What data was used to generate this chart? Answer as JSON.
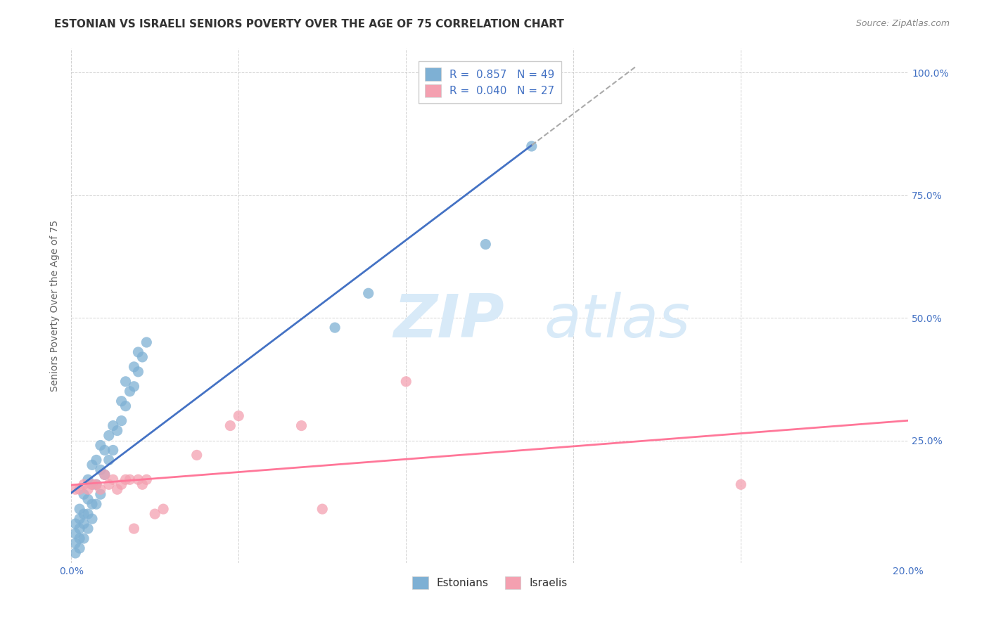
{
  "title": "ESTONIAN VS ISRAELI SENIORS POVERTY OVER THE AGE OF 75 CORRELATION CHART",
  "source": "Source: ZipAtlas.com",
  "ylabel": "Seniors Poverty Over the Age of 75",
  "xlim": [
    0.0,
    0.2
  ],
  "ylim": [
    0.0,
    1.05
  ],
  "x_ticks": [
    0.0,
    0.04,
    0.08,
    0.12,
    0.16,
    0.2
  ],
  "x_tick_labels": [
    "0.0%",
    "",
    "",
    "",
    "",
    "20.0%"
  ],
  "y_ticks": [
    0.0,
    0.25,
    0.5,
    0.75,
    1.0
  ],
  "y_tick_labels_right": [
    "",
    "25.0%",
    "50.0%",
    "75.0%",
    "100.0%"
  ],
  "estonian_color": "#7EB0D4",
  "israeli_color": "#F4A0B0",
  "estonian_line_color": "#4472C4",
  "israeli_line_color": "#FF7799",
  "background_color": "#FFFFFF",
  "grid_color": "#CCCCCC",
  "watermark_zip": "ZIP",
  "watermark_atlas": "atlas",
  "watermark_color": "#D8EAF8",
  "tick_color": "#4472C4",
  "legend_R_color": "#4472C4",
  "estonians_x": [
    0.001,
    0.001,
    0.001,
    0.001,
    0.002,
    0.002,
    0.002,
    0.002,
    0.002,
    0.003,
    0.003,
    0.003,
    0.003,
    0.004,
    0.004,
    0.004,
    0.004,
    0.005,
    0.005,
    0.005,
    0.005,
    0.006,
    0.006,
    0.006,
    0.007,
    0.007,
    0.007,
    0.008,
    0.008,
    0.009,
    0.009,
    0.01,
    0.01,
    0.011,
    0.012,
    0.012,
    0.013,
    0.013,
    0.014,
    0.015,
    0.015,
    0.016,
    0.016,
    0.017,
    0.018,
    0.063,
    0.071,
    0.099,
    0.11
  ],
  "estonians_y": [
    0.02,
    0.04,
    0.06,
    0.08,
    0.03,
    0.05,
    0.07,
    0.09,
    0.11,
    0.05,
    0.08,
    0.1,
    0.14,
    0.07,
    0.1,
    0.13,
    0.17,
    0.09,
    0.12,
    0.16,
    0.2,
    0.12,
    0.16,
    0.21,
    0.14,
    0.19,
    0.24,
    0.18,
    0.23,
    0.21,
    0.26,
    0.23,
    0.28,
    0.27,
    0.29,
    0.33,
    0.32,
    0.37,
    0.35,
    0.36,
    0.4,
    0.39,
    0.43,
    0.42,
    0.45,
    0.48,
    0.55,
    0.65,
    0.85
  ],
  "israelis_x": [
    0.001,
    0.002,
    0.003,
    0.004,
    0.005,
    0.006,
    0.007,
    0.008,
    0.009,
    0.01,
    0.011,
    0.012,
    0.013,
    0.014,
    0.015,
    0.016,
    0.017,
    0.018,
    0.02,
    0.022,
    0.03,
    0.038,
    0.04,
    0.055,
    0.06,
    0.08,
    0.16
  ],
  "israelis_y": [
    0.15,
    0.15,
    0.16,
    0.15,
    0.16,
    0.16,
    0.15,
    0.18,
    0.16,
    0.17,
    0.15,
    0.16,
    0.17,
    0.17,
    0.07,
    0.17,
    0.16,
    0.17,
    0.1,
    0.11,
    0.22,
    0.28,
    0.3,
    0.28,
    0.11,
    0.37,
    0.16
  ],
  "estonian_R": 0.857,
  "estonian_N": 49,
  "israeli_R": 0.04,
  "israeli_N": 27,
  "title_fontsize": 11,
  "source_fontsize": 9,
  "axis_label_fontsize": 10,
  "tick_fontsize": 10,
  "legend_fontsize": 11,
  "marker_size": 120
}
